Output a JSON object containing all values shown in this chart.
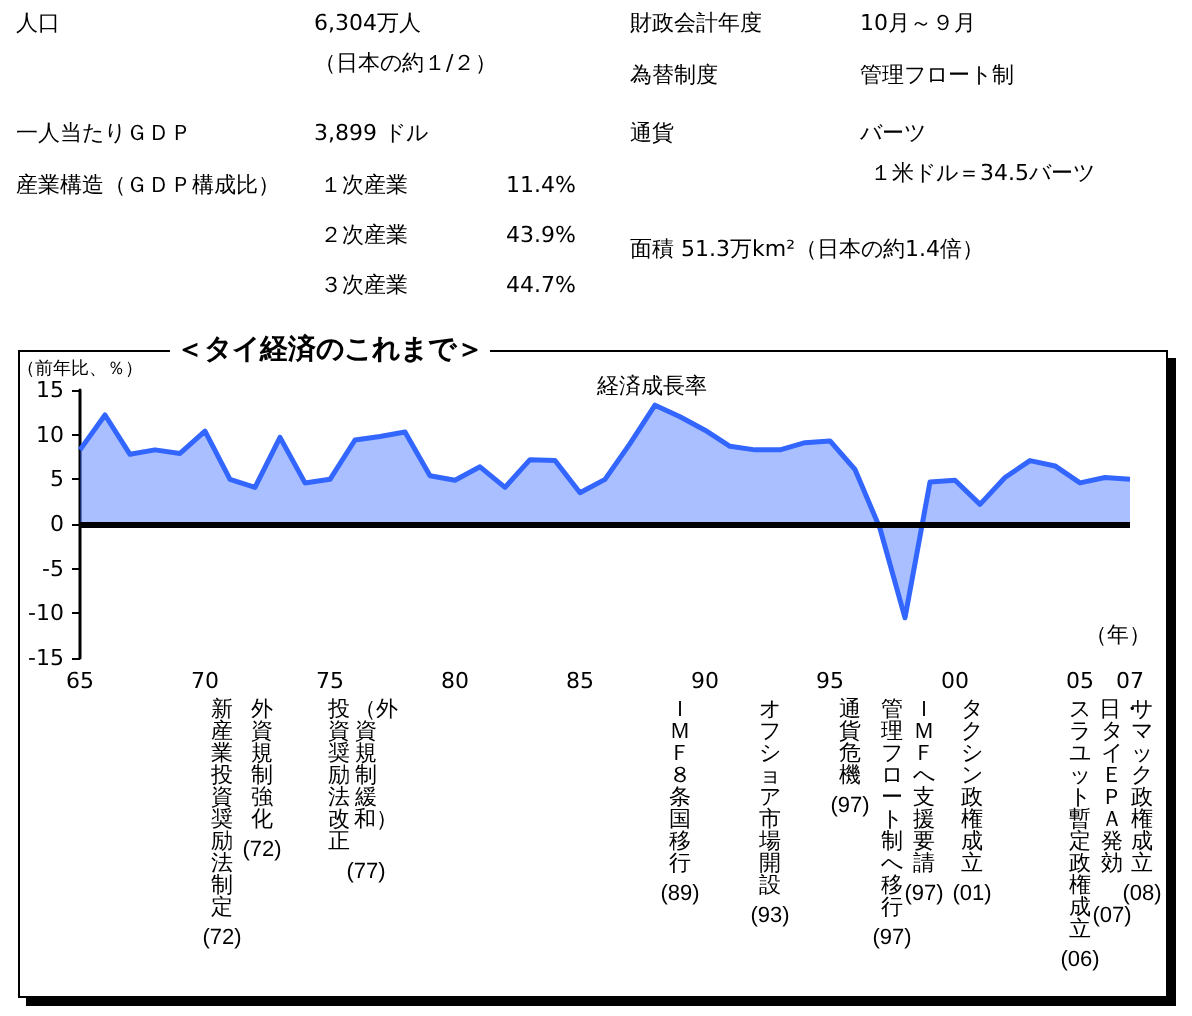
{
  "chart_data": [
    {
      "type": "other",
      "annotations": [
        "人口",
        "6,304万人",
        "財政会計年度",
        "10月～９月",
        "（日本の約１/２）",
        "為替制度",
        "管理フロート制",
        "一人当たりＧＤＰ",
        "3,899 ドル",
        "通貨",
        "バーツ",
        "産業構造（ＧＤＰ構成比）",
        "１次産業",
        "11.4%",
        "１米ドル＝34.5バーツ",
        "２次産業",
        "43.9%",
        "面積 51.3万km²（日本の約1.4倍）",
        "３次産業",
        "44.7%"
      ]
    },
    {
      "type": "area",
      "title": "＜タイ経済のこれまで＞",
      "ylabel": "（前年比、％）",
      "xlabel": "（年）",
      "x": [
        1965,
        1966,
        1967,
        1968,
        1969,
        1970,
        1971,
        1972,
        1973,
        1974,
        1975,
        1976,
        1977,
        1978,
        1979,
        1980,
        1981,
        1982,
        1983,
        1984,
        1985,
        1986,
        1987,
        1988,
        1989,
        1990,
        1991,
        1992,
        1993,
        1994,
        1995,
        1996,
        1997,
        1998,
        1999,
        2000,
        2001,
        2002,
        2003,
        2004,
        2005,
        2006,
        2007
      ],
      "series": [
        {
          "name": "経済成長率",
          "color": "#3366ff",
          "values": [
            8.3,
            12.2,
            7.8,
            8.3,
            7.9,
            10.4,
            5.0,
            4.1,
            9.7,
            4.6,
            5.0,
            9.4,
            9.8,
            10.3,
            5.4,
            4.9,
            6.4,
            4.1,
            7.2,
            7.1,
            3.5,
            5.0,
            9.0,
            13.3,
            12.0,
            10.5,
            8.7,
            8.3,
            8.3,
            9.1,
            9.3,
            6.1,
            -0.5,
            -10.5,
            4.7,
            4.9,
            2.2,
            5.2,
            7.1,
            6.5,
            4.6,
            5.2,
            5.0
          ]
        }
      ],
      "xlim": [
        1965,
        2007
      ],
      "xticks": [
        {
          "value": 1965,
          "label": "65"
        },
        {
          "value": 1970,
          "label": "70"
        },
        {
          "value": 1975,
          "label": "75"
        },
        {
          "value": 1980,
          "label": "80"
        },
        {
          "value": 1985,
          "label": "85"
        },
        {
          "value": 1990,
          "label": "90"
        },
        {
          "value": 1995,
          "label": "95"
        },
        {
          "value": 2000,
          "label": "00"
        },
        {
          "value": 2005,
          "label": "05"
        },
        {
          "value": 2007,
          "label": "07"
        }
      ],
      "ylim": [
        -15,
        15
      ],
      "yticks": [
        -15,
        -10,
        -5,
        0,
        5,
        10,
        15
      ],
      "ref_lines": [
        {
          "axis": "y",
          "value": 0,
          "color": "#000000"
        }
      ],
      "grid": false,
      "legend": false,
      "marker": "none",
      "annotations": [
        "新産業投資奨励法制定(72)",
        "外資規制強化(72)",
        "投資奨励法改正（外資規制緩和）(77)",
        "ＩＭＦ８条国移行(89)",
        "オフショア市場開設(93)",
        "通貨危機(97)",
        "管理フロート制へ移行(97)",
        "ＩＭＦへ支援要請(97)",
        "タクシン政権成立(01)",
        "スラユット暫定政権成立(06)",
        "日・タイＥＰＡ発効(07)",
        "サマック政権成立(08)"
      ]
    }
  ]
}
